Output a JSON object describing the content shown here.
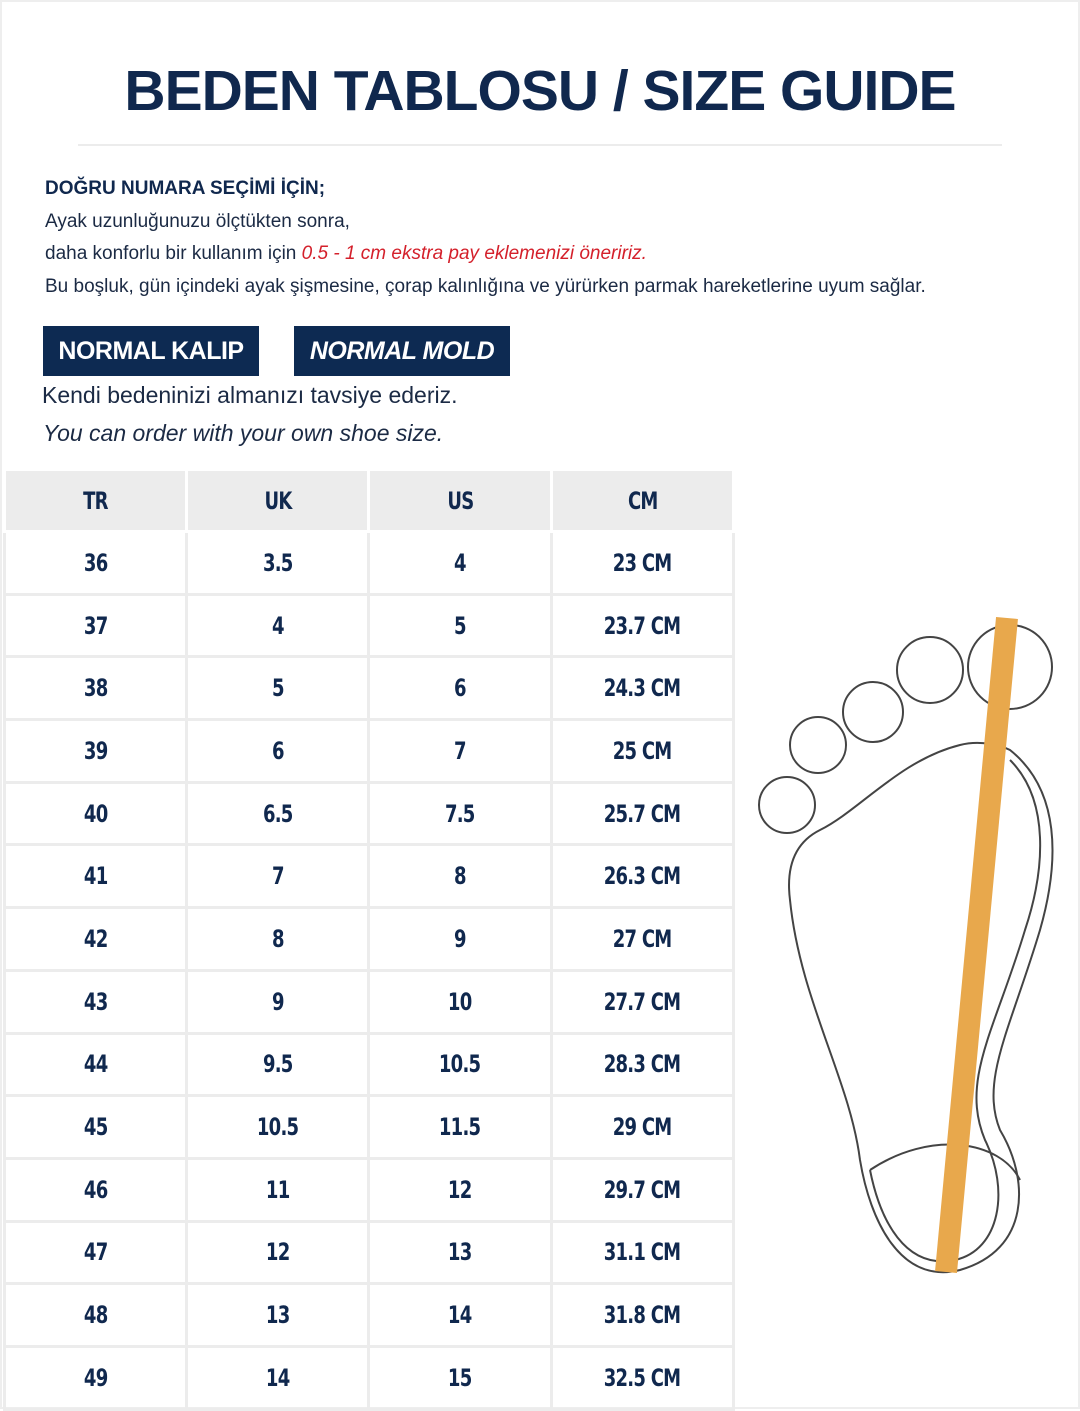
{
  "title": "BEDEN TABLOSU / SIZE GUIDE",
  "intro": {
    "heading": "DOĞRU NUMARA SEÇİMİ İÇİN;",
    "line1": "Ayak uzunluğunuzu ölçtükten sonra,",
    "line2_prefix": "daha konforlu bir kullanım için ",
    "line2_highlight": "0.5 - 1 cm ekstra pay eklemenizi öneririz.",
    "line3": "Bu boşluk, gün içindeki ayak şişmesine, çorap kalınlığına ve yürürken parmak hareketlerine uyum sağlar."
  },
  "badges": [
    "NORMAL KALIP",
    "NORMAL MOLD"
  ],
  "advice_tr": "Kendi bedeninizi almanızı tavsiye ederiz.",
  "advice_en": "You can order with your own shoe size.",
  "colors": {
    "navy": "#10284e",
    "highlight_red": "#d4202b",
    "measure_bar": "#e8a84c"
  },
  "table": {
    "headers": [
      "TR",
      "UK",
      "US",
      "CM"
    ],
    "rows": [
      [
        "36",
        "3.5",
        "4",
        "23 CM"
      ],
      [
        "37",
        "4",
        "5",
        "23.7 CM"
      ],
      [
        "38",
        "5",
        "6",
        "24.3 CM"
      ],
      [
        "39",
        "6",
        "7",
        "25 CM"
      ],
      [
        "40",
        "6.5",
        "7.5",
        "25.7 CM"
      ],
      [
        "41",
        "7",
        "8",
        "26.3 CM"
      ],
      [
        "42",
        "8",
        "9",
        "27 CM"
      ],
      [
        "43",
        "9",
        "10",
        "27.7 CM"
      ],
      [
        "44",
        "9.5",
        "10.5",
        "28.3 CM"
      ],
      [
        "45",
        "10.5",
        "11.5",
        "29 CM"
      ],
      [
        "46",
        "11",
        "12",
        "29.7 CM"
      ],
      [
        "47",
        "12",
        "13",
        "31.1 CM"
      ],
      [
        "48",
        "13",
        "14",
        "31.8 CM"
      ],
      [
        "49",
        "14",
        "15",
        "32.5 CM"
      ]
    ]
  }
}
